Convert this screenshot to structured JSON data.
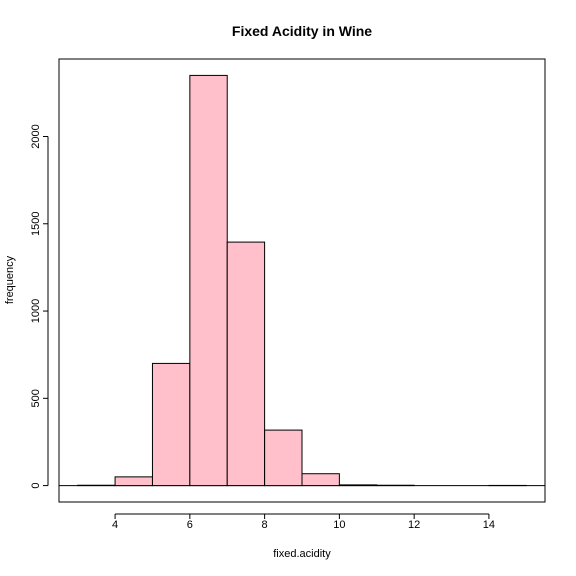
{
  "chart_data": {
    "type": "bar",
    "title": "Fixed Acidity in Wine",
    "xlabel": "fixed.acidity",
    "ylabel": "frequency",
    "bins": [
      {
        "start": 3,
        "end": 4,
        "count": 2
      },
      {
        "start": 4,
        "end": 5,
        "count": 50
      },
      {
        "start": 5,
        "end": 6,
        "count": 700
      },
      {
        "start": 6,
        "end": 7,
        "count": 2350
      },
      {
        "start": 7,
        "end": 8,
        "count": 1395
      },
      {
        "start": 8,
        "end": 9,
        "count": 318
      },
      {
        "start": 9,
        "end": 10,
        "count": 68
      },
      {
        "start": 10,
        "end": 11,
        "count": 4
      },
      {
        "start": 11,
        "end": 12,
        "count": 2
      },
      {
        "start": 12,
        "end": 13,
        "count": 0
      },
      {
        "start": 13,
        "end": 14,
        "count": 0
      },
      {
        "start": 14,
        "end": 15,
        "count": 1
      }
    ],
    "xticks": [
      4,
      6,
      8,
      10,
      12,
      14
    ],
    "yticks": [
      0,
      500,
      1000,
      1500,
      2000
    ],
    "xlim": [
      2.5,
      15.5
    ],
    "ylim": [
      -94,
      2444
    ],
    "bar_color": "#ffc0cb",
    "edge_color": "#000000",
    "grid": false,
    "legend": "none"
  }
}
